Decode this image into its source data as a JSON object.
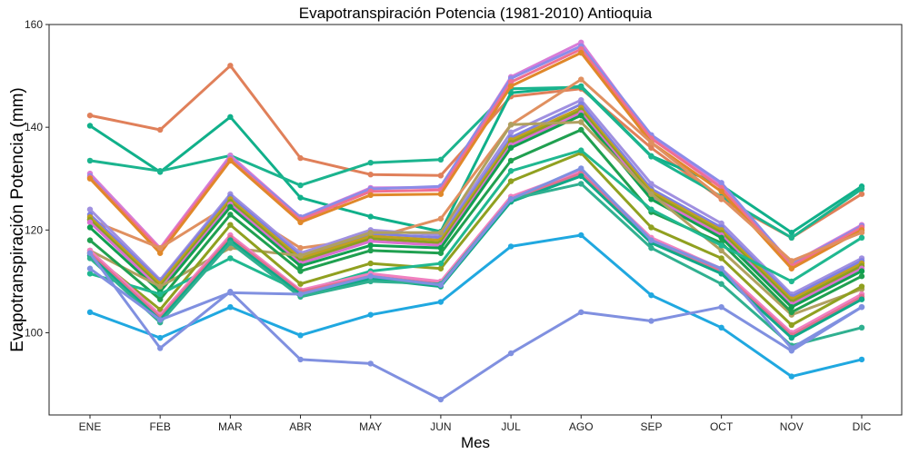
{
  "chart_data": {
    "type": "line",
    "title": "Evapotranspiración Potencia (1981-2010)  Antioquia",
    "xlabel": "Mes",
    "ylabel": "Evapotranspiración Potencia  (mm)",
    "categories": [
      "ENE",
      "FEB",
      "MAR",
      "ABR",
      "MAY",
      "JUN",
      "JUL",
      "AGO",
      "SEP",
      "OCT",
      "NOV",
      "DIC"
    ],
    "ylim": [
      84,
      160
    ],
    "yticks": [
      100,
      120,
      140,
      160
    ],
    "grid": false,
    "legend": "none",
    "series": [
      {
        "color": "#E0805A",
        "values": [
          142.3,
          139.5,
          152.0,
          134.0,
          130.8,
          130.6,
          146.0,
          147.5,
          136.0,
          126.0,
          118.5,
          127.0
        ]
      },
      {
        "color": "#10B08A",
        "values": [
          140.3,
          131.3,
          142.0,
          126.3,
          122.6,
          119.7,
          146.7,
          148.0,
          134.4,
          128.7,
          119.5,
          128.5
        ]
      },
      {
        "color": "#1BB48E",
        "values": [
          133.5,
          131.5,
          134.5,
          128.7,
          133.1,
          133.7,
          147.5,
          147.8,
          134.3,
          126.5,
          118.5,
          128.0
        ]
      },
      {
        "color": "#D87CD8",
        "values": [
          131.0,
          116.5,
          134.5,
          122.5,
          128.2,
          128.3,
          149.8,
          156.5,
          138.0,
          128.8,
          113.5,
          121.0
        ]
      },
      {
        "color": "#8C8CE8",
        "values": [
          130.5,
          116.0,
          134.0,
          122.5,
          128.0,
          128.5,
          149.5,
          155.8,
          138.5,
          129.2,
          113.3,
          120.8
        ]
      },
      {
        "color": "#F07090",
        "values": [
          130.2,
          116.2,
          133.8,
          122.0,
          127.5,
          127.8,
          148.8,
          155.2,
          137.8,
          128.2,
          113.0,
          120.5
        ]
      },
      {
        "color": "#E0882A",
        "values": [
          130.0,
          115.5,
          133.5,
          121.5,
          126.8,
          127.0,
          148.0,
          154.5,
          137.0,
          127.5,
          112.5,
          120.0
        ]
      },
      {
        "color": "#E09060",
        "values": [
          122.0,
          116.5,
          125.0,
          116.5,
          118.3,
          122.2,
          140.5,
          149.3,
          137.0,
          126.2,
          114.0,
          119.5
        ]
      },
      {
        "color": "#A090E0",
        "values": [
          124.0,
          110.3,
          127.0,
          115.5,
          120.0,
          119.0,
          139.0,
          145.3,
          129.0,
          121.3,
          107.5,
          114.5
        ]
      },
      {
        "color": "#8080E0",
        "values": [
          123.0,
          110.0,
          126.5,
          115.0,
          119.3,
          118.5,
          138.0,
          144.5,
          128.0,
          120.5,
          107.0,
          114.0
        ]
      },
      {
        "color": "#C0A020",
        "values": [
          122.5,
          109.5,
          126.0,
          114.5,
          118.8,
          118.0,
          137.5,
          143.8,
          127.5,
          120.0,
          106.5,
          113.5
        ]
      },
      {
        "color": "#8CA020",
        "values": [
          122.0,
          109.0,
          125.5,
          114.0,
          118.3,
          117.5,
          137.0,
          143.3,
          127.0,
          119.5,
          106.0,
          113.0
        ]
      },
      {
        "color": "#D870D0",
        "values": [
          121.5,
          108.5,
          125.0,
          113.5,
          117.8,
          117.0,
          136.5,
          142.8,
          126.5,
          119.0,
          105.5,
          112.5
        ]
      },
      {
        "color": "#10A050",
        "values": [
          120.5,
          108.0,
          124.5,
          113.0,
          117.0,
          116.5,
          136.0,
          142.3,
          126.0,
          118.5,
          105.0,
          112.0
        ]
      },
      {
        "color": "#B0A060",
        "values": [
          116.0,
          109.0,
          116.5,
          115.0,
          119.5,
          119.5,
          140.5,
          141.0,
          127.0,
          116.0,
          103.5,
          108.5
        ]
      },
      {
        "color": "#20A050",
        "values": [
          118.0,
          106.5,
          123.0,
          112.0,
          116.0,
          115.5,
          133.5,
          139.5,
          123.5,
          117.5,
          104.0,
          111.0
        ]
      },
      {
        "color": "#90A020",
        "values": [
          115.5,
          104.5,
          121.0,
          109.5,
          113.5,
          112.5,
          129.5,
          135.0,
          120.5,
          114.5,
          101.5,
          109.0
        ]
      },
      {
        "color": "#20B890",
        "values": [
          111.5,
          107.5,
          114.5,
          108.0,
          112.0,
          113.5,
          131.5,
          135.5,
          124.0,
          117.0,
          110.0,
          118.5
        ]
      },
      {
        "color": "#F080C0",
        "values": [
          116.0,
          103.5,
          119.0,
          108.3,
          111.5,
          110.0,
          126.5,
          131.5,
          118.5,
          112.5,
          100.0,
          107.5
        ]
      },
      {
        "color": "#E07090",
        "values": [
          115.5,
          103.0,
          118.5,
          108.0,
          111.0,
          109.5,
          126.0,
          131.0,
          118.0,
          112.0,
          99.5,
          107.0
        ]
      },
      {
        "color": "#10A888",
        "values": [
          115.0,
          102.5,
          118.0,
          107.5,
          110.5,
          109.0,
          125.5,
          130.5,
          117.5,
          111.5,
          99.0,
          106.5
        ]
      },
      {
        "color": "#30B090",
        "values": [
          114.5,
          102.0,
          117.5,
          107.0,
          110.0,
          109.5,
          126.0,
          129.0,
          116.5,
          109.5,
          97.5,
          101.0
        ]
      },
      {
        "color": "#8090E0",
        "values": [
          112.5,
          102.5,
          107.8,
          107.5,
          111.0,
          109.3,
          126.0,
          132.0,
          118.0,
          112.5,
          97.0,
          105.0
        ]
      },
      {
        "color": "#20A8E0",
        "values": [
          104.0,
          99.0,
          105.0,
          99.5,
          103.5,
          106.0,
          116.8,
          119.0,
          107.3,
          101.0,
          91.5,
          94.8
        ]
      },
      {
        "color": "#8090E0",
        "values": [
          115.5,
          97.0,
          108.0,
          94.8,
          94.0,
          87.0,
          96.0,
          104.0,
          102.3,
          105.0,
          96.5,
          105.0
        ]
      }
    ]
  }
}
